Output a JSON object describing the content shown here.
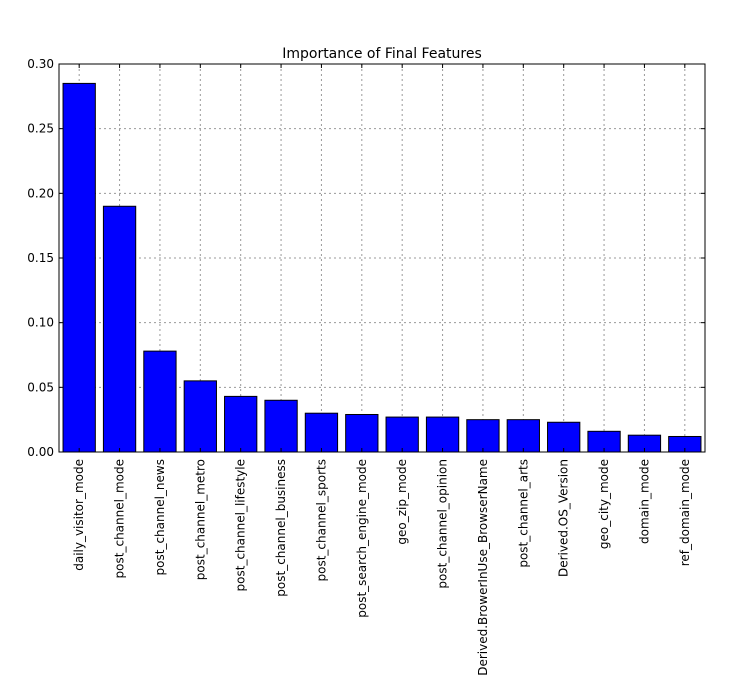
{
  "chart_data": {
    "type": "bar",
    "title": "Importance of Final Features",
    "xlabel": "",
    "ylabel": "",
    "ylim": [
      0,
      0.3
    ],
    "yticks": [
      "0.00",
      "0.05",
      "0.10",
      "0.15",
      "0.20",
      "0.25",
      "0.30"
    ],
    "grid": true,
    "bar_color": "#0000ff",
    "categories": [
      "daily_visitor_mode",
      "post_channel_mode",
      "post_channel_news",
      "post_channel_metro",
      "post_channel_lifestyle",
      "post_channel_business",
      "post_channel_sports",
      "post_search_engine_mode",
      "geo_zip_mode",
      "post_channel_opinion",
      "Derived.BrowerInUse_BrowserName",
      "post_channel_arts",
      "Derived.OS_Version",
      "geo_city_mode",
      "domain_mode",
      "ref_domain_mode"
    ],
    "values": [
      0.285,
      0.19,
      0.078,
      0.055,
      0.043,
      0.04,
      0.03,
      0.029,
      0.027,
      0.027,
      0.025,
      0.025,
      0.023,
      0.016,
      0.013,
      0.012
    ]
  }
}
